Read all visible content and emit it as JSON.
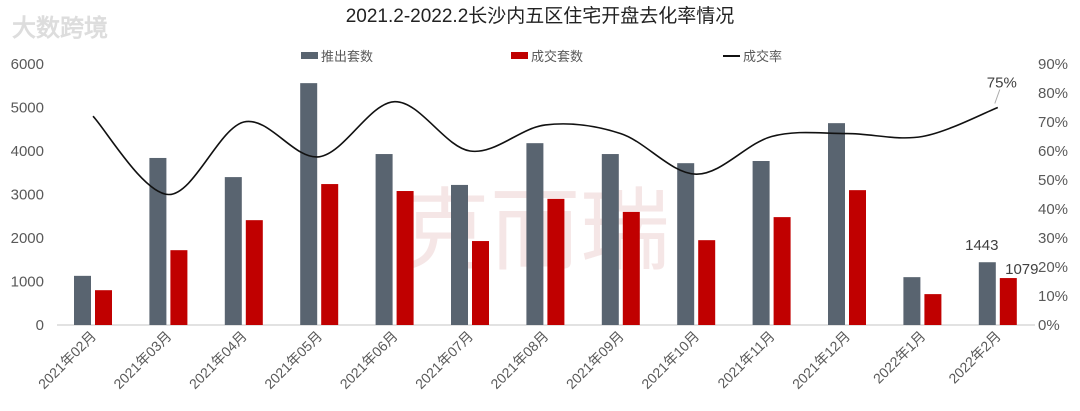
{
  "chart_data": {
    "type": "bar+line",
    "title": "2021.2-2022.2长沙内五区住宅开盘去化率情况",
    "categories": [
      "2021年02月",
      "2021年03月",
      "2021年04月",
      "2021年05月",
      "2021年06月",
      "2021年07月",
      "2021年08月",
      "2021年09月",
      "2021年10月",
      "2021年11月",
      "2021年12月",
      "2022年1月",
      "2022年2月"
    ],
    "series": [
      {
        "name": "推出套数",
        "type": "bar",
        "axis": "left",
        "color": "#596470",
        "values": [
          1130,
          3840,
          3400,
          5560,
          3930,
          3220,
          4180,
          3930,
          3720,
          3770,
          4640,
          1100,
          1443
        ]
      },
      {
        "name": "成交套数",
        "type": "bar",
        "axis": "left",
        "color": "#c00000",
        "values": [
          800,
          1720,
          2410,
          3240,
          3080,
          1930,
          2900,
          2600,
          1950,
          2480,
          3100,
          710,
          1079
        ]
      },
      {
        "name": "成交率",
        "type": "line",
        "axis": "right",
        "color": "#111111",
        "values": [
          0.72,
          0.45,
          0.7,
          0.58,
          0.77,
          0.6,
          0.69,
          0.66,
          0.52,
          0.65,
          0.66,
          0.65,
          0.75
        ]
      }
    ],
    "left_axis": {
      "ylim": [
        0,
        6000
      ],
      "ticks": [
        "0",
        "1000",
        "2000",
        "3000",
        "4000",
        "5000",
        "6000"
      ]
    },
    "right_axis": {
      "ylim": [
        0,
        0.9
      ],
      "ticks": [
        "0%",
        "10%",
        "20%",
        "30%",
        "40%",
        "50%",
        "60%",
        "70%",
        "80%",
        "90%"
      ]
    },
    "data_labels": {
      "bar_grey_last": "1443",
      "bar_red_last": "1079",
      "line_last": "75%"
    },
    "legend_position": "top-center",
    "grid": false
  },
  "watermarks": {
    "center": "克而瑞",
    "corner": "大数跨境"
  }
}
